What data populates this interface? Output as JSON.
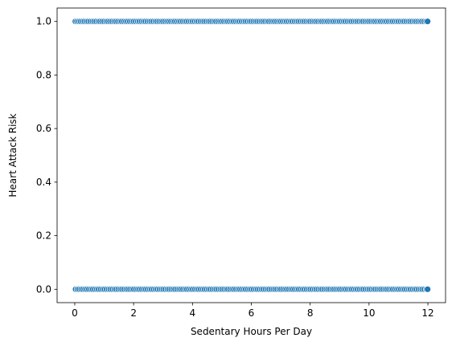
{
  "chart_data": {
    "type": "scatter",
    "title": "",
    "xlabel": "Sedentary Hours Per Day",
    "ylabel": "Heart Attack Risk",
    "xlim": [
      -0.6,
      12.6
    ],
    "ylim": [
      -0.05,
      1.05
    ],
    "x_ticks": [
      0,
      2,
      4,
      6,
      8,
      10,
      12
    ],
    "x_tick_labels": [
      "0",
      "2",
      "4",
      "6",
      "8",
      "10",
      "12"
    ],
    "y_ticks": [
      0.0,
      0.2,
      0.4,
      0.6,
      0.8,
      1.0
    ],
    "y_tick_labels": [
      "0.0",
      "0.2",
      "0.4",
      "0.6",
      "0.8",
      "1.0"
    ],
    "grid": false,
    "marker_color": "#1f77b4",
    "series": [
      {
        "y": 1,
        "x": [
          0.02,
          0.08,
          0.14,
          0.2,
          0.27,
          0.33,
          0.4,
          0.46,
          0.53,
          0.6,
          0.66,
          0.73,
          0.8,
          0.86,
          0.93,
          1.0,
          1.07,
          1.13,
          1.2,
          1.27,
          1.34,
          1.4,
          1.47,
          1.54,
          1.6,
          1.67,
          1.74,
          1.8,
          1.87,
          1.94,
          2.0,
          2.07,
          2.14,
          2.2,
          2.27,
          2.34,
          2.4,
          2.47,
          2.54,
          2.6,
          2.67,
          2.74,
          2.8,
          2.87,
          2.94,
          3.0,
          3.07,
          3.14,
          3.2,
          3.27,
          3.34,
          3.4,
          3.47,
          3.54,
          3.6,
          3.67,
          3.74,
          3.8,
          3.87,
          3.94,
          4.0,
          4.07,
          4.14,
          4.2,
          4.27,
          4.34,
          4.4,
          4.47,
          4.54,
          4.6,
          4.67,
          4.74,
          4.8,
          4.87,
          4.94,
          5.0,
          5.07,
          5.14,
          5.2,
          5.27,
          5.34,
          5.4,
          5.47,
          5.54,
          5.6,
          5.67,
          5.74,
          5.8,
          5.87,
          5.94,
          6.0,
          6.07,
          6.14,
          6.2,
          6.27,
          6.34,
          6.4,
          6.47,
          6.54,
          6.6,
          6.67,
          6.74,
          6.8,
          6.87,
          6.94,
          7.0,
          7.07,
          7.14,
          7.2,
          7.27,
          7.34,
          7.4,
          7.47,
          7.54,
          7.6,
          7.67,
          7.74,
          7.8,
          7.87,
          7.94,
          8.0,
          8.07,
          8.14,
          8.2,
          8.27,
          8.34,
          8.4,
          8.47,
          8.54,
          8.6,
          8.67,
          8.74,
          8.8,
          8.87,
          8.94,
          9.0,
          9.07,
          9.14,
          9.2,
          9.27,
          9.34,
          9.4,
          9.47,
          9.54,
          9.6,
          9.67,
          9.74,
          9.8,
          9.87,
          9.94,
          10.0,
          10.07,
          10.14,
          10.2,
          10.27,
          10.34,
          10.4,
          10.47,
          10.54,
          10.6,
          10.67,
          10.74,
          10.8,
          10.87,
          10.94,
          11.0,
          11.07,
          11.14,
          11.2,
          11.27,
          11.34,
          11.4,
          11.47,
          11.54,
          11.6,
          11.67,
          11.74,
          11.8,
          11.87,
          11.94,
          11.99
        ]
      },
      {
        "y": 0,
        "x": [
          0.03,
          0.09,
          0.15,
          0.22,
          0.28,
          0.35,
          0.41,
          0.48,
          0.55,
          0.61,
          0.68,
          0.75,
          0.81,
          0.88,
          0.95,
          1.01,
          1.08,
          1.15,
          1.21,
          1.28,
          1.35,
          1.41,
          1.48,
          1.55,
          1.61,
          1.68,
          1.75,
          1.81,
          1.88,
          1.95,
          2.01,
          2.08,
          2.15,
          2.21,
          2.28,
          2.35,
          2.41,
          2.48,
          2.55,
          2.61,
          2.68,
          2.75,
          2.81,
          2.88,
          2.95,
          3.01,
          3.08,
          3.15,
          3.21,
          3.28,
          3.35,
          3.41,
          3.48,
          3.55,
          3.61,
          3.68,
          3.75,
          3.81,
          3.88,
          3.95,
          4.01,
          4.08,
          4.15,
          4.21,
          4.28,
          4.35,
          4.41,
          4.48,
          4.55,
          4.61,
          4.68,
          4.75,
          4.81,
          4.88,
          4.95,
          5.01,
          5.08,
          5.15,
          5.21,
          5.28,
          5.35,
          5.41,
          5.48,
          5.55,
          5.61,
          5.68,
          5.75,
          5.81,
          5.88,
          5.95,
          6.01,
          6.08,
          6.15,
          6.21,
          6.28,
          6.35,
          6.41,
          6.48,
          6.55,
          6.61,
          6.68,
          6.75,
          6.81,
          6.88,
          6.95,
          7.01,
          7.08,
          7.15,
          7.21,
          7.28,
          7.35,
          7.41,
          7.48,
          7.55,
          7.61,
          7.68,
          7.75,
          7.81,
          7.88,
          7.95,
          8.01,
          8.08,
          8.15,
          8.21,
          8.28,
          8.35,
          8.41,
          8.48,
          8.55,
          8.61,
          8.68,
          8.75,
          8.81,
          8.88,
          8.95,
          9.01,
          9.08,
          9.15,
          9.21,
          9.28,
          9.35,
          9.41,
          9.48,
          9.55,
          9.61,
          9.68,
          9.75,
          9.81,
          9.88,
          9.95,
          10.01,
          10.08,
          10.15,
          10.21,
          10.28,
          10.35,
          10.41,
          10.48,
          10.55,
          10.61,
          10.68,
          10.75,
          10.81,
          10.88,
          10.95,
          11.01,
          11.08,
          11.15,
          11.21,
          11.28,
          11.35,
          11.41,
          11.48,
          11.55,
          11.61,
          11.68,
          11.75,
          11.81,
          11.88,
          11.95,
          11.99
        ]
      }
    ]
  }
}
